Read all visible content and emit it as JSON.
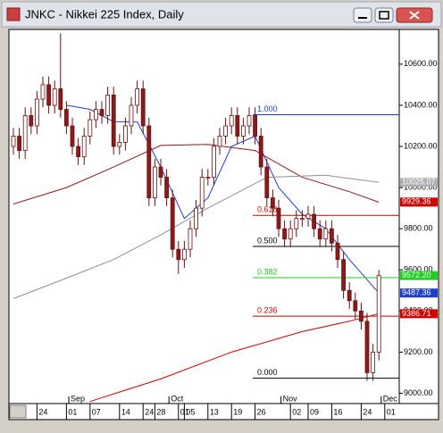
{
  "chart_data": {
    "type": "candlestick",
    "title": "JNKC - Nikkei 225 Index, Daily",
    "up_color": "#ffffff",
    "down_color": "#8b1a1a",
    "outline_color": "#6b0f0f",
    "candles": {
      "open": [
        10200,
        10250,
        10180,
        10350,
        10300,
        10430,
        10500,
        10400,
        10480,
        10380,
        10300,
        10200,
        10150,
        10250,
        10330,
        10380,
        10350,
        10450,
        10200,
        10220,
        10300,
        10400,
        10480,
        10300,
        9950,
        10100,
        10050,
        9950,
        9700,
        9650,
        9700,
        9800,
        9900,
        10050,
        10050,
        10200,
        10250,
        10300,
        10350,
        10250,
        10300,
        10350,
        10250,
        10100,
        9950,
        9900,
        9800,
        9750,
        9800,
        9850,
        9850,
        9870,
        9800,
        9750,
        9800,
        9730,
        9650,
        9500,
        9450,
        9400,
        9350,
        9100,
        9200
      ],
      "high": [
        10290,
        10290,
        10390,
        10390,
        10470,
        10540,
        10540,
        10520,
        10750,
        10420,
        10340,
        10240,
        10290,
        10370,
        10420,
        10420,
        10490,
        10490,
        10260,
        10340,
        10440,
        10520,
        10520,
        10340,
        10140,
        10140,
        10090,
        9990,
        9740,
        9740,
        9840,
        9940,
        10090,
        10090,
        10240,
        10290,
        10340,
        10390,
        10390,
        10340,
        10390,
        10390,
        10290,
        10140,
        9990,
        9940,
        9840,
        9840,
        9890,
        9890,
        9910,
        9910,
        9840,
        9840,
        9840,
        9770,
        9690,
        9540,
        9490,
        9440,
        9390,
        9240,
        9600
      ],
      "low": [
        10160,
        10140,
        10140,
        10260,
        10260,
        10390,
        10360,
        10360,
        10340,
        10260,
        10160,
        10110,
        10110,
        10210,
        10290,
        10310,
        10310,
        10160,
        10160,
        10180,
        10260,
        10360,
        10260,
        9910,
        9910,
        10010,
        9910,
        9660,
        9580,
        9610,
        9660,
        9760,
        9860,
        10010,
        10010,
        10160,
        10210,
        10260,
        10210,
        10210,
        10260,
        10210,
        10060,
        9910,
        9860,
        9760,
        9710,
        9710,
        9760,
        9810,
        9810,
        9760,
        9710,
        9710,
        9690,
        9610,
        9460,
        9410,
        9360,
        9310,
        9060,
        9060,
        9160
      ],
      "close": [
        10250,
        10180,
        10350,
        10300,
        10430,
        10500,
        10400,
        10480,
        10380,
        10300,
        10200,
        10150,
        10250,
        10330,
        10380,
        10350,
        10450,
        10200,
        10220,
        10300,
        10400,
        10480,
        10300,
        9950,
        10100,
        10050,
        9950,
        9700,
        9650,
        9700,
        9800,
        9900,
        10050,
        10050,
        10200,
        10250,
        10300,
        10350,
        10250,
        10300,
        10350,
        10250,
        10100,
        9950,
        9900,
        9800,
        9750,
        9800,
        9850,
        9850,
        9870,
        9800,
        9750,
        9800,
        9730,
        9650,
        9500,
        9450,
        9400,
        9350,
        9100,
        9200,
        9572
      ]
    },
    "lines": [
      {
        "color": "#1f3fc8",
        "x": [
          9,
          13,
          17,
          21,
          25,
          29,
          33,
          37,
          41,
          45,
          49,
          53,
          57,
          62
        ],
        "values": [
          10400,
          10380,
          10320,
          10320,
          10100,
          9850,
          9950,
          10200,
          10250,
          10000,
          9870,
          9800,
          9650,
          9487
        ]
      },
      {
        "color": "#8b1a1a",
        "x": [
          0,
          9,
          17,
          25,
          33,
          41,
          49,
          57,
          62
        ],
        "values": [
          9920,
          10000,
          10100,
          10205,
          10210,
          10180,
          10050,
          9980,
          9929
        ]
      },
      {
        "color": "#909090",
        "x": [
          0,
          9,
          17,
          25,
          33,
          43,
          53,
          62
        ],
        "values": [
          9460,
          9560,
          9650,
          9770,
          9900,
          10050,
          10060,
          10025
        ]
      },
      {
        "color": "#cc0000",
        "x": [
          13,
          25,
          37,
          49,
          57,
          62
        ],
        "values": [
          8960,
          9070,
          9200,
          9300,
          9350,
          9387
        ]
      }
    ],
    "fibonacci": [
      {
        "label": "1.000",
        "value": 10354,
        "color": "#1f3fc8"
      },
      {
        "label": "0.618",
        "value": 9865,
        "color": "#cc0000"
      },
      {
        "label": "0.500",
        "value": 9714,
        "color": "#000000"
      },
      {
        "label": "0.382",
        "value": 9562,
        "color": "#22cc22"
      },
      {
        "label": "0.236",
        "value": 9375,
        "color": "#cc0000"
      },
      {
        "label": "0.000",
        "value": 9073,
        "color": "#000000"
      }
    ],
    "price_tags": [
      {
        "value": 10025.07,
        "label": "10025.07",
        "color": "#b0b0b0"
      },
      {
        "value": 9929.36,
        "label": "9929.36",
        "color": "#cc0000"
      },
      {
        "value": 9572.2,
        "label": "9572.20",
        "color": "#22cc22"
      },
      {
        "value": 9487.36,
        "label": "9487.36",
        "color": "#1f3fc8"
      },
      {
        "value": 9386.71,
        "label": "9386.71",
        "color": "#cc0000"
      }
    ],
    "ylim": [
      8950,
      10760
    ],
    "yticks": [
      {
        "value": 10600,
        "label": "10600.00"
      },
      {
        "value": 10400,
        "label": "10400.00"
      },
      {
        "value": 10200,
        "label": "10200.00"
      },
      {
        "value": 10000,
        "label": "10000.00"
      },
      {
        "value": 9800,
        "label": "9800.00"
      },
      {
        "value": 9600,
        "label": "9600.00"
      },
      {
        "value": 9400,
        "label": "9400.00"
      },
      {
        "value": 9200,
        "label": "9200.00"
      },
      {
        "value": 9000,
        "label": "9000.00"
      }
    ],
    "xticks": [
      {
        "value": 4,
        "label": "24"
      },
      {
        "value": 9,
        "label": "01"
      },
      {
        "value": 13,
        "label": "07"
      },
      {
        "value": 18,
        "label": "14"
      },
      {
        "value": 22,
        "label": "24"
      },
      {
        "value": 24,
        "label": "28"
      },
      {
        "value": 28,
        "label": "01"
      },
      {
        "value": 29,
        "label": "05"
      },
      {
        "value": 33,
        "label": "13"
      },
      {
        "value": 37,
        "label": "19"
      },
      {
        "value": 41,
        "label": "26"
      },
      {
        "value": 47,
        "label": "02"
      },
      {
        "value": 50,
        "label": "09"
      },
      {
        "value": 54,
        "label": "16"
      },
      {
        "value": 59,
        "label": "24"
      },
      {
        "value": 63,
        "label": "01"
      }
    ],
    "month_labels": [
      {
        "value": 10,
        "label": "Sep"
      },
      {
        "value": 27,
        "label": "Oct"
      },
      {
        "value": 46,
        "label": "Nov"
      },
      {
        "value": 63,
        "label": "Dec"
      }
    ]
  }
}
